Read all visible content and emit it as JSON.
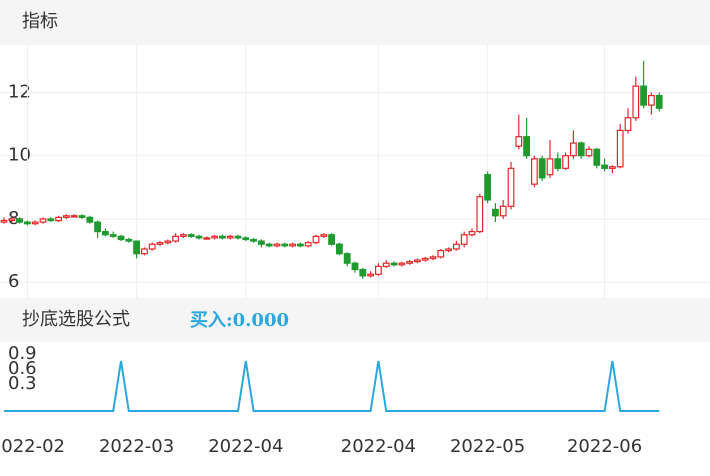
{
  "header": {
    "title": "指标"
  },
  "chart_data": [
    {
      "type": "candlestick",
      "candles": [
        [
          7.9,
          8.05,
          7.85,
          7.95
        ],
        [
          7.95,
          8.05,
          7.9,
          8.0
        ],
        [
          8.0,
          8.05,
          7.85,
          7.9
        ],
        [
          7.9,
          7.95,
          7.8,
          7.85
        ],
        [
          7.85,
          7.95,
          7.8,
          7.9
        ],
        [
          7.9,
          8.05,
          7.85,
          8.0
        ],
        [
          8.0,
          8.05,
          7.9,
          7.95
        ],
        [
          7.95,
          8.1,
          7.9,
          8.05
        ],
        [
          8.05,
          8.15,
          8.0,
          8.1
        ],
        [
          8.1,
          8.15,
          8.05,
          8.1
        ],
        [
          8.1,
          8.15,
          8.0,
          8.05
        ],
        [
          8.05,
          8.1,
          7.85,
          7.9
        ],
        [
          7.9,
          7.95,
          7.4,
          7.6
        ],
        [
          7.6,
          7.7,
          7.45,
          7.5
        ],
        [
          7.5,
          7.6,
          7.4,
          7.45
        ],
        [
          7.45,
          7.5,
          7.3,
          7.35
        ],
        [
          7.35,
          7.4,
          7.25,
          7.3
        ],
        [
          7.3,
          7.3,
          6.75,
          6.9
        ],
        [
          6.9,
          7.1,
          6.85,
          7.05
        ],
        [
          7.05,
          7.25,
          7.0,
          7.2
        ],
        [
          7.2,
          7.3,
          7.15,
          7.25
        ],
        [
          7.25,
          7.35,
          7.2,
          7.3
        ],
        [
          7.3,
          7.55,
          7.25,
          7.45
        ],
        [
          7.45,
          7.55,
          7.4,
          7.5
        ],
        [
          7.5,
          7.55,
          7.4,
          7.45
        ],
        [
          7.45,
          7.5,
          7.35,
          7.4
        ],
        [
          7.4,
          7.45,
          7.35,
          7.4
        ],
        [
          7.4,
          7.5,
          7.35,
          7.45
        ],
        [
          7.45,
          7.5,
          7.35,
          7.4
        ],
        [
          7.4,
          7.5,
          7.35,
          7.45
        ],
        [
          7.45,
          7.5,
          7.35,
          7.4
        ],
        [
          7.4,
          7.45,
          7.3,
          7.35
        ],
        [
          7.35,
          7.4,
          7.25,
          7.3
        ],
        [
          7.3,
          7.35,
          7.1,
          7.2
        ],
        [
          7.2,
          7.25,
          7.1,
          7.15
        ],
        [
          7.15,
          7.25,
          7.1,
          7.2
        ],
        [
          7.2,
          7.25,
          7.1,
          7.15
        ],
        [
          7.15,
          7.25,
          7.1,
          7.2
        ],
        [
          7.2,
          7.25,
          7.1,
          7.15
        ],
        [
          7.15,
          7.3,
          7.1,
          7.25
        ],
        [
          7.25,
          7.5,
          7.2,
          7.45
        ],
        [
          7.45,
          7.55,
          7.4,
          7.5
        ],
        [
          7.5,
          7.55,
          7.15,
          7.2
        ],
        [
          7.2,
          7.25,
          6.85,
          6.9
        ],
        [
          6.9,
          6.95,
          6.5,
          6.6
        ],
        [
          6.6,
          6.65,
          6.3,
          6.4
        ],
        [
          6.4,
          6.45,
          6.1,
          6.2
        ],
        [
          6.2,
          6.35,
          6.15,
          6.25
        ],
        [
          6.25,
          6.6,
          6.2,
          6.5
        ],
        [
          6.5,
          6.7,
          6.45,
          6.6
        ],
        [
          6.6,
          6.65,
          6.5,
          6.55
        ],
        [
          6.55,
          6.65,
          6.5,
          6.6
        ],
        [
          6.6,
          6.7,
          6.55,
          6.65
        ],
        [
          6.65,
          6.75,
          6.6,
          6.7
        ],
        [
          6.7,
          6.8,
          6.65,
          6.75
        ],
        [
          6.75,
          6.85,
          6.7,
          6.8
        ],
        [
          6.8,
          7.05,
          6.75,
          7.0
        ],
        [
          7.0,
          7.1,
          6.95,
          7.05
        ],
        [
          7.05,
          7.3,
          7.0,
          7.2
        ],
        [
          7.2,
          7.6,
          7.1,
          7.5
        ],
        [
          7.5,
          7.7,
          7.45,
          7.6
        ],
        [
          7.6,
          8.8,
          7.55,
          8.7
        ],
        [
          9.4,
          9.5,
          8.5,
          8.6
        ],
        [
          8.3,
          8.5,
          7.9,
          8.1
        ],
        [
          8.1,
          8.6,
          8.0,
          8.4
        ],
        [
          8.4,
          9.8,
          8.3,
          9.6
        ],
        [
          10.3,
          11.3,
          10.2,
          10.6
        ],
        [
          10.6,
          11.2,
          9.9,
          10.0
        ],
        [
          9.1,
          10.0,
          9.0,
          9.9
        ],
        [
          9.9,
          10.0,
          9.2,
          9.3
        ],
        [
          9.4,
          10.5,
          9.3,
          9.9
        ],
        [
          9.9,
          10.1,
          9.5,
          9.6
        ],
        [
          9.6,
          10.1,
          9.55,
          10.0
        ],
        [
          10.0,
          10.8,
          9.9,
          10.4
        ],
        [
          10.4,
          10.45,
          9.9,
          10.0
        ],
        [
          10.0,
          10.3,
          9.95,
          10.2
        ],
        [
          10.2,
          10.25,
          9.6,
          9.7
        ],
        [
          9.7,
          9.9,
          9.5,
          9.6
        ],
        [
          9.6,
          9.7,
          9.45,
          9.65
        ],
        [
          9.65,
          11.0,
          9.6,
          10.8
        ],
        [
          10.8,
          11.5,
          10.7,
          11.2
        ],
        [
          11.2,
          12.5,
          11.1,
          12.2
        ],
        [
          12.2,
          13.0,
          11.5,
          11.6
        ],
        [
          11.6,
          12.0,
          11.3,
          11.9
        ],
        [
          11.9,
          12.0,
          11.4,
          11.5
        ]
      ],
      "up_color": "#e3262b",
      "down_color": "#1f9a2e",
      "ylim": [
        5.5,
        13.5
      ],
      "yticks": [
        6,
        8,
        10,
        12
      ],
      "xticks": [
        {
          "value": 3,
          "label": "2022-02"
        },
        {
          "value": 17,
          "label": "2022-03"
        },
        {
          "value": 31,
          "label": "2022-04"
        },
        {
          "value": 48,
          "label": "2022-04"
        },
        {
          "value": 62,
          "label": "2022-05"
        },
        {
          "value": 77,
          "label": "2022-06"
        }
      ],
      "grid": true
    },
    {
      "type": "line",
      "title": "抄底选股公式",
      "annotation": "买入:0.000",
      "color": "#2aa7df",
      "values": [
        0,
        0,
        0,
        0,
        0,
        0,
        0,
        0,
        0,
        0,
        0,
        0,
        0,
        0,
        0,
        1,
        0,
        0,
        0,
        0,
        0,
        0,
        0,
        0,
        0,
        0,
        0,
        0,
        0,
        0,
        0,
        1,
        0,
        0,
        0,
        0,
        0,
        0,
        0,
        0,
        0,
        0,
        0,
        0,
        0,
        0,
        0,
        0,
        1,
        0,
        0,
        0,
        0,
        0,
        0,
        0,
        0,
        0,
        0,
        0,
        0,
        0,
        0,
        0,
        0,
        0,
        0,
        0,
        0,
        0,
        0,
        0,
        0,
        0,
        0,
        0,
        0,
        0,
        1,
        0,
        0,
        0,
        0,
        0,
        0
      ],
      "ylim": [
        0,
        1.2
      ],
      "yticks": [
        0.3,
        0.6,
        0.9
      ]
    }
  ]
}
